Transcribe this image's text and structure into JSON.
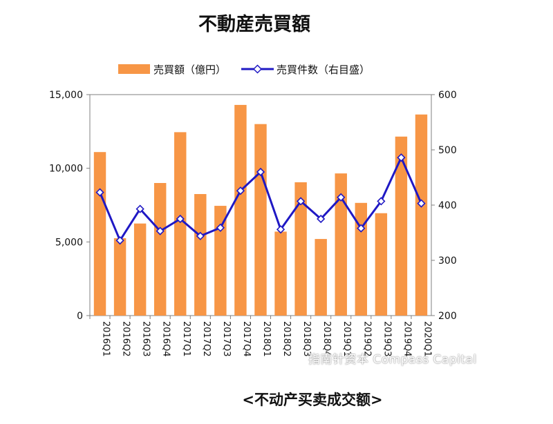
{
  "chart_data": {
    "type": "bar+line",
    "title": "不動産売買額",
    "categories": [
      "2016Q1",
      "2016Q2",
      "2016Q3",
      "2016Q4",
      "2017Q1",
      "2017Q2",
      "2017Q3",
      "2017Q4",
      "2018Q1",
      "2018Q2",
      "2018Q3",
      "2018Q4",
      "2019Q1",
      "2019Q2",
      "2019Q3",
      "2019Q4",
      "2020Q1"
    ],
    "series": [
      {
        "name": "売買額（億円）",
        "type": "bar",
        "axis": "left",
        "color": "#f79646",
        "values": [
          11100,
          5250,
          6250,
          9000,
          12450,
          8250,
          7450,
          14300,
          13000,
          5700,
          9050,
          5200,
          9650,
          7650,
          6950,
          12150,
          13650
        ]
      },
      {
        "name": "売買件数（右目盛）",
        "type": "line",
        "axis": "right",
        "color": "#1f18c4",
        "values": [
          423,
          336,
          393,
          353,
          375,
          344,
          359,
          426,
          460,
          356,
          407,
          375,
          414,
          358,
          407,
          486,
          403
        ]
      }
    ],
    "y_left": {
      "ylim": [
        0,
        15000
      ],
      "ticks": [
        "0",
        "5,000",
        "10,000",
        "15,000"
      ],
      "tick_values": [
        0,
        5000,
        10000,
        15000
      ]
    },
    "y_right": {
      "ylim": [
        200,
        600
      ],
      "ticks": [
        "200",
        "300",
        "400",
        "500",
        "600"
      ],
      "tick_values": [
        200,
        300,
        400,
        500,
        600
      ]
    },
    "legend_placement": "top",
    "grid": false
  },
  "watermark": "指南针资本 Compass Capital",
  "caption": "<不动产买卖成交额>"
}
